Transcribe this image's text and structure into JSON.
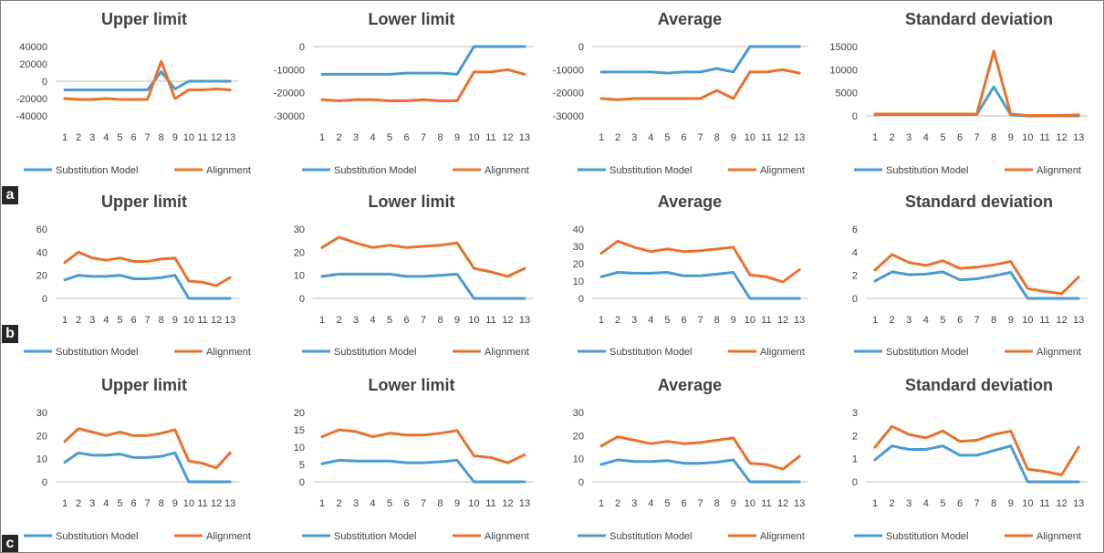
{
  "colors": {
    "series1": "#4A9BD1",
    "series2": "#E8722E",
    "axis": "#BFBFBF"
  },
  "row_labels": [
    "a",
    "b",
    "c"
  ],
  "chart_data": [
    {
      "type": "line",
      "panel": "a",
      "title": "Upper limit",
      "categories": [
        "1",
        "2",
        "3",
        "4",
        "5",
        "6",
        "7",
        "8",
        "9",
        "10",
        "11",
        "12",
        "13"
      ],
      "ylim": [
        -40000,
        40000
      ],
      "yticks": [
        "-40000",
        "-20000",
        "0",
        "20000",
        "40000"
      ],
      "series": [
        {
          "name": "Substitution Model",
          "values": [
            -10000,
            -10000,
            -10000,
            -10000,
            -10000,
            -10000,
            -10000,
            11000,
            -9000,
            0,
            0,
            0,
            0
          ]
        },
        {
          "name": "Alignment",
          "values": [
            -20000,
            -21000,
            -21000,
            -20000,
            -21000,
            -21000,
            -21000,
            23000,
            -20000,
            -10000,
            -10000,
            -9000,
            -10000
          ]
        }
      ],
      "legend": "bottom"
    },
    {
      "type": "line",
      "panel": "a",
      "title": "Lower limit",
      "categories": [
        "1",
        "2",
        "3",
        "4",
        "5",
        "6",
        "7",
        "8",
        "9",
        "10",
        "11",
        "12",
        "13"
      ],
      "ylim": [
        -30000,
        0
      ],
      "yticks": [
        "-30000",
        "-20000",
        "-10000",
        "0"
      ],
      "series": [
        {
          "name": "Substitution Model",
          "values": [
            -12000,
            -12000,
            -12000,
            -12000,
            -12000,
            -11500,
            -11500,
            -11500,
            -12000,
            0,
            0,
            0,
            0
          ]
        },
        {
          "name": "Alignment",
          "values": [
            -23000,
            -23500,
            -23000,
            -23000,
            -23500,
            -23500,
            -23000,
            -23500,
            -23500,
            -11000,
            -11000,
            -10000,
            -12000
          ]
        }
      ],
      "legend": "bottom"
    },
    {
      "type": "line",
      "panel": "a",
      "title": "Average",
      "categories": [
        "1",
        "2",
        "3",
        "4",
        "5",
        "6",
        "7",
        "8",
        "9",
        "10",
        "11",
        "12",
        "13"
      ],
      "ylim": [
        -30000,
        0
      ],
      "yticks": [
        "-30000",
        "-20000",
        "-10000",
        "0"
      ],
      "series": [
        {
          "name": "Substitution Model",
          "values": [
            -11000,
            -11000,
            -11000,
            -11000,
            -11500,
            -11000,
            -11000,
            -9500,
            -11000,
            0,
            0,
            0,
            0
          ]
        },
        {
          "name": "Alignment",
          "values": [
            -22500,
            -23000,
            -22500,
            -22500,
            -22500,
            -22500,
            -22500,
            -19000,
            -22500,
            -11000,
            -11000,
            -10000,
            -11500
          ]
        }
      ],
      "legend": "bottom"
    },
    {
      "type": "line",
      "panel": "a",
      "title": "Standard deviation",
      "categories": [
        "1",
        "2",
        "3",
        "4",
        "5",
        "6",
        "7",
        "8",
        "9",
        "10",
        "11",
        "12",
        "13"
      ],
      "ylim": [
        0,
        15000
      ],
      "yticks": [
        "0",
        "5000",
        "10000",
        "15000"
      ],
      "series": [
        {
          "name": "Substitution Model",
          "values": [
            300,
            300,
            300,
            300,
            300,
            300,
            300,
            6300,
            200,
            0,
            0,
            0,
            0
          ]
        },
        {
          "name": "Alignment",
          "values": [
            400,
            400,
            400,
            400,
            400,
            400,
            400,
            14000,
            400,
            100,
            100,
            100,
            200
          ]
        }
      ],
      "legend": "bottom"
    },
    {
      "type": "line",
      "panel": "b",
      "title": "Upper limit",
      "categories": [
        "1",
        "2",
        "3",
        "4",
        "5",
        "6",
        "7",
        "8",
        "9",
        "10",
        "11",
        "12",
        "13"
      ],
      "ylim": [
        0,
        60
      ],
      "yticks": [
        "0",
        "20",
        "40",
        "60"
      ],
      "series": [
        {
          "name": "Substitution Model",
          "values": [
            16,
            20,
            19,
            19,
            20,
            17,
            17,
            18,
            20,
            0,
            0,
            0,
            0
          ]
        },
        {
          "name": "Alignment",
          "values": [
            31,
            40,
            35,
            33,
            35,
            32,
            32,
            34,
            35,
            15,
            14,
            11,
            18
          ]
        }
      ],
      "legend": "bottom"
    },
    {
      "type": "line",
      "panel": "b",
      "title": "Lower limit",
      "categories": [
        "1",
        "2",
        "3",
        "4",
        "5",
        "6",
        "7",
        "8",
        "9",
        "10",
        "11",
        "12",
        "13"
      ],
      "ylim": [
        0,
        30
      ],
      "yticks": [
        "0",
        "10",
        "20",
        "30"
      ],
      "series": [
        {
          "name": "Substitution Model",
          "values": [
            9.5,
            10.5,
            10.5,
            10.5,
            10.5,
            9.5,
            9.5,
            10,
            10.5,
            0,
            0,
            0,
            0
          ]
        },
        {
          "name": "Alignment",
          "values": [
            22,
            26.5,
            24,
            22,
            23,
            22,
            22.5,
            23,
            24,
            13,
            11.5,
            9.5,
            13
          ]
        }
      ],
      "legend": "bottom"
    },
    {
      "type": "line",
      "panel": "b",
      "title": "Average",
      "categories": [
        "1",
        "2",
        "3",
        "4",
        "5",
        "6",
        "7",
        "8",
        "9",
        "10",
        "11",
        "12",
        "13"
      ],
      "ylim": [
        0,
        40
      ],
      "yticks": [
        "0",
        "10",
        "20",
        "30",
        "40"
      ],
      "series": [
        {
          "name": "Substitution Model",
          "values": [
            12.5,
            15,
            14.5,
            14.5,
            15,
            13,
            13,
            14,
            15,
            0,
            0,
            0,
            0
          ]
        },
        {
          "name": "Alignment",
          "values": [
            26,
            33,
            29.5,
            27,
            28.5,
            27,
            27.5,
            28.5,
            29.5,
            13.5,
            12.5,
            9.5,
            16.5
          ]
        }
      ],
      "legend": "bottom"
    },
    {
      "type": "line",
      "panel": "b",
      "title": "Standard deviation",
      "categories": [
        "1",
        "2",
        "3",
        "4",
        "5",
        "6",
        "7",
        "8",
        "9",
        "10",
        "11",
        "12",
        "13"
      ],
      "ylim": [
        0,
        6
      ],
      "yticks": [
        "0",
        "2",
        "4",
        "6"
      ],
      "series": [
        {
          "name": "Substitution Model",
          "values": [
            1.5,
            2.3,
            2.05,
            2.1,
            2.3,
            1.6,
            1.7,
            1.95,
            2.25,
            0,
            0,
            0,
            0
          ]
        },
        {
          "name": "Alignment",
          "values": [
            2.45,
            3.8,
            3.1,
            2.85,
            3.25,
            2.6,
            2.7,
            2.9,
            3.2,
            0.85,
            0.6,
            0.4,
            1.85
          ]
        }
      ],
      "legend": "bottom"
    },
    {
      "type": "line",
      "panel": "c",
      "title": "Upper limit",
      "categories": [
        "1",
        "2",
        "3",
        "4",
        "5",
        "6",
        "7",
        "8",
        "9",
        "10",
        "11",
        "12",
        "13"
      ],
      "ylim": [
        0,
        30
      ],
      "yticks": [
        "0",
        "10",
        "20",
        "30"
      ],
      "series": [
        {
          "name": "Substitution Model",
          "values": [
            8.5,
            12.5,
            11.5,
            11.5,
            12,
            10.5,
            10.5,
            11,
            12.5,
            0,
            0,
            0,
            0
          ]
        },
        {
          "name": "Alignment",
          "values": [
            17.5,
            23,
            21.5,
            20,
            21.5,
            20,
            20,
            21,
            22.5,
            9,
            8,
            6,
            12.5
          ]
        }
      ],
      "legend": "bottom"
    },
    {
      "type": "line",
      "panel": "c",
      "title": "Lower limit",
      "categories": [
        "1",
        "2",
        "3",
        "4",
        "5",
        "6",
        "7",
        "8",
        "9",
        "10",
        "11",
        "12",
        "13"
      ],
      "ylim": [
        0,
        20
      ],
      "yticks": [
        "0",
        "5",
        "10",
        "15",
        "20"
      ],
      "series": [
        {
          "name": "Substitution Model",
          "values": [
            5.2,
            6.2,
            6,
            6,
            6,
            5.5,
            5.5,
            5.8,
            6.2,
            0,
            0,
            0,
            0
          ]
        },
        {
          "name": "Alignment",
          "values": [
            13,
            15,
            14.5,
            13,
            14,
            13.5,
            13.5,
            14,
            14.8,
            7.5,
            7,
            5.5,
            7.8
          ]
        }
      ],
      "legend": "bottom"
    },
    {
      "type": "line",
      "panel": "c",
      "title": "Average",
      "categories": [
        "1",
        "2",
        "3",
        "4",
        "5",
        "6",
        "7",
        "8",
        "9",
        "10",
        "11",
        "12",
        "13"
      ],
      "ylim": [
        0,
        30
      ],
      "yticks": [
        "0",
        "10",
        "20",
        "30"
      ],
      "series": [
        {
          "name": "Substitution Model",
          "values": [
            7.5,
            9.5,
            8.8,
            8.8,
            9.2,
            8,
            8,
            8.5,
            9.5,
            0,
            0,
            0,
            0
          ]
        },
        {
          "name": "Alignment",
          "values": [
            15.5,
            19.5,
            18,
            16.5,
            17.5,
            16.5,
            17,
            18,
            19,
            8,
            7.5,
            5.5,
            11
          ]
        }
      ],
      "legend": "bottom"
    },
    {
      "type": "line",
      "panel": "c",
      "title": "Standard deviation",
      "categories": [
        "1",
        "2",
        "3",
        "4",
        "5",
        "6",
        "7",
        "8",
        "9",
        "10",
        "11",
        "12",
        "13"
      ],
      "ylim": [
        0,
        3
      ],
      "yticks": [
        "0",
        "1",
        "2",
        "3"
      ],
      "series": [
        {
          "name": "Substitution Model",
          "values": [
            0.95,
            1.55,
            1.4,
            1.4,
            1.55,
            1.15,
            1.15,
            1.35,
            1.55,
            0,
            0,
            0,
            0
          ]
        },
        {
          "name": "Alignment",
          "values": [
            1.5,
            2.4,
            2.05,
            1.9,
            2.2,
            1.75,
            1.8,
            2.05,
            2.2,
            0.55,
            0.45,
            0.3,
            1.5
          ]
        }
      ],
      "legend": "bottom"
    }
  ]
}
